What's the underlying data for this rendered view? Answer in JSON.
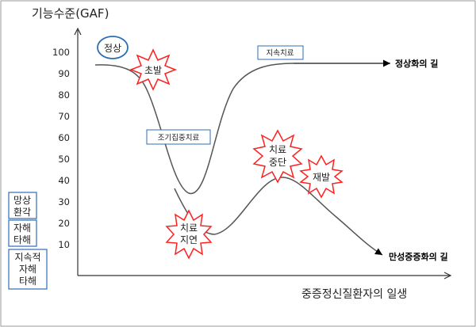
{
  "y_axis_title": "기능수준(GAF)",
  "x_axis_title": "중증정신질환자의 일생",
  "y_ticks": [
    "100",
    "90",
    "80",
    "70",
    "60",
    "50",
    "40",
    "30",
    "20",
    "10"
  ],
  "side_boxes": [
    {
      "lines": [
        "망상",
        "환각"
      ]
    },
    {
      "lines": [
        "자해",
        "타해"
      ]
    },
    {
      "lines": [
        "지속적",
        "자해",
        "타해"
      ]
    }
  ],
  "labels": {
    "normal": "정상",
    "continuous_treatment": "지속치료",
    "early_intensive_treatment": "조기집중치료",
    "normal_path": "정상화의 길",
    "chronic_path": "만성중증화의 길"
  },
  "bursts": {
    "onset": [
      "초발"
    ],
    "treatment_delay": [
      "치료",
      "지연"
    ],
    "treatment_stop": [
      "치료",
      "중단"
    ],
    "relapse": [
      "재발"
    ]
  },
  "colors": {
    "burst_stroke": "#ff2020",
    "box_border": "#2e6db4",
    "curve": "#555555",
    "axis": "#333333"
  }
}
